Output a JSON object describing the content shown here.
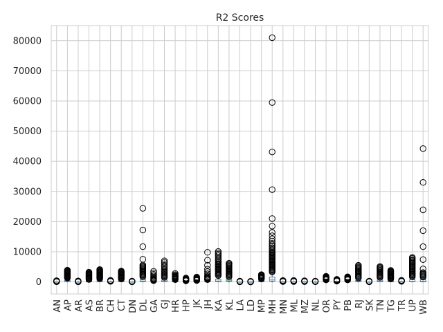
{
  "chart_data": {
    "type": "box",
    "title": "R2 Scores",
    "xlabel": "",
    "ylabel": "",
    "ylim": [
      -4000,
      85000
    ],
    "yticks": [
      0,
      10000,
      20000,
      30000,
      40000,
      50000,
      60000,
      70000,
      80000
    ],
    "grid": true,
    "colors": {
      "box": "#4c72b0",
      "median": "#55a868",
      "whisker": "#4c72b0",
      "flier": "#000000",
      "grid": "#cccccc",
      "axis": "#cccccc"
    },
    "boxes": [
      {
        "label": "AN",
        "q1": 0,
        "median": 0,
        "q3": 20,
        "whislo": 0,
        "whishi": 40,
        "fliers": [
          60,
          100,
          150,
          200,
          250,
          300,
          350,
          400
        ]
      },
      {
        "label": "AP",
        "q1": 30,
        "median": 150,
        "q3": 500,
        "whislo": 0,
        "whishi": 1200,
        "fliers": [
          1300,
          1500,
          1700,
          1900,
          2100,
          2300,
          2500,
          2700,
          2900,
          3100,
          3300,
          3500,
          3700,
          3900
        ]
      },
      {
        "label": "AR",
        "q1": 0,
        "median": 0,
        "q3": 10,
        "whislo": 0,
        "whishi": 25,
        "fliers": [
          30,
          50,
          80,
          110,
          150,
          200,
          260,
          320
        ]
      },
      {
        "label": "AS",
        "q1": 10,
        "median": 60,
        "q3": 300,
        "whislo": 0,
        "whishi": 700,
        "fliers": [
          800,
          1000,
          1200,
          1400,
          1600,
          1800,
          2000,
          2200,
          2400,
          2600,
          2800,
          3000,
          3200
        ]
      },
      {
        "label": "BR",
        "q1": 20,
        "median": 100,
        "q3": 400,
        "whislo": 0,
        "whishi": 1000,
        "fliers": [
          1100,
          1300,
          1500,
          1700,
          1900,
          2100,
          2300,
          2500,
          2700,
          2900,
          3100,
          3300,
          3500,
          3700,
          3900,
          4100
        ]
      },
      {
        "label": "CH",
        "q1": 0,
        "median": 20,
        "q3": 80,
        "whislo": 0,
        "whishi": 150,
        "fliers": [
          180,
          220,
          260,
          300,
          350,
          400,
          450,
          500
        ]
      },
      {
        "label": "CT",
        "q1": 20,
        "median": 100,
        "q3": 400,
        "whislo": 0,
        "whishi": 900,
        "fliers": [
          1000,
          1200,
          1400,
          1600,
          1800,
          2000,
          2200,
          2400,
          2600,
          2800,
          3000,
          3200,
          3400,
          3600
        ]
      },
      {
        "label": "DN",
        "q1": 0,
        "median": 0,
        "q3": 10,
        "whislo": 0,
        "whishi": 20,
        "fliers": [
          30,
          60,
          90,
          130,
          170,
          210,
          250
        ]
      },
      {
        "label": "DL",
        "q1": 50,
        "median": 300,
        "q3": 800,
        "whislo": 0,
        "whishi": 1500,
        "fliers": [
          1700,
          2000,
          2300,
          2600,
          2900,
          3200,
          3500,
          3800,
          4100,
          4400,
          4700,
          5000,
          5300,
          5600,
          7500,
          11700,
          17200,
          24400
        ]
      },
      {
        "label": "GA",
        "q1": 0,
        "median": 30,
        "q3": 150,
        "whislo": 0,
        "whishi": 300,
        "fliers": [
          400,
          600,
          800,
          1000,
          1300,
          1600,
          2000,
          2500,
          3000,
          3500
        ]
      },
      {
        "label": "GJ",
        "q1": 30,
        "median": 200,
        "q3": 600,
        "whislo": 0,
        "whishi": 1300,
        "fliers": [
          1500,
          1800,
          2100,
          2400,
          2700,
          3000,
          3300,
          3600,
          4000,
          4500,
          5000,
          5500,
          6000,
          6500,
          7000
        ]
      },
      {
        "label": "HR",
        "q1": 10,
        "median": 80,
        "q3": 300,
        "whislo": 0,
        "whishi": 650,
        "fliers": [
          750,
          900,
          1100,
          1300,
          1500,
          1700,
          1900,
          2100,
          2400,
          2800
        ]
      },
      {
        "label": "HP",
        "q1": 0,
        "median": 30,
        "q3": 150,
        "whislo": 0,
        "whishi": 300,
        "fliers": [
          350,
          450,
          550,
          650,
          750,
          850,
          950,
          1100,
          1300
        ]
      },
      {
        "label": "JK",
        "q1": 0,
        "median": 40,
        "q3": 180,
        "whislo": 0,
        "whishi": 380,
        "fliers": [
          450,
          550,
          650,
          750,
          850,
          950,
          1050,
          1200,
          1400,
          1600
        ]
      },
      {
        "label": "JH",
        "q1": 10,
        "median": 80,
        "q3": 300,
        "whislo": 0,
        "whishi": 650,
        "fliers": [
          750,
          900,
          1100,
          1300,
          1500,
          1800,
          2200,
          2700,
          3400,
          4200,
          5500,
          7200,
          9800
        ]
      },
      {
        "label": "KA",
        "q1": 60,
        "median": 300,
        "q3": 900,
        "whislo": 0,
        "whishi": 1900,
        "fliers": [
          2100,
          2400,
          2700,
          3000,
          3300,
          3600,
          3900,
          4200,
          4500,
          4800,
          5100,
          5400,
          5700,
          6000,
          6400,
          6800,
          7200,
          7700,
          8200,
          8700,
          9200,
          9600,
          10100
        ]
      },
      {
        "label": "KL",
        "q1": 200,
        "median": 400,
        "q3": 800,
        "whislo": 0,
        "whishi": 1500,
        "fliers": [
          1700,
          2000,
          2300,
          2600,
          2900,
          3200,
          3500,
          3800,
          4100,
          4400,
          4700,
          5000,
          5300,
          5600,
          5900,
          6200
        ]
      },
      {
        "label": "LA",
        "q1": 0,
        "median": 0,
        "q3": 10,
        "whislo": 0,
        "whishi": 20,
        "fliers": [
          30,
          60,
          100,
          150,
          200,
          260
        ]
      },
      {
        "label": "LD",
        "q1": 0,
        "median": 0,
        "q3": 0,
        "whislo": 0,
        "whishi": 0,
        "fliers": [
          5,
          15,
          30,
          60,
          100,
          150,
          200
        ]
      },
      {
        "label": "MP",
        "q1": 20,
        "median": 100,
        "q3": 400,
        "whislo": 0,
        "whishi": 900,
        "fliers": [
          1000,
          1200,
          1400,
          1600,
          1800,
          2000,
          2200,
          2400
        ]
      },
      {
        "label": "MH",
        "q1": 300,
        "median": 800,
        "q3": 1600,
        "whislo": 0,
        "whishi": 3000,
        "fliers": [
          3300,
          3600,
          3900,
          4200,
          4500,
          4800,
          5100,
          5400,
          5700,
          6000,
          6300,
          6600,
          6900,
          7200,
          7500,
          7800,
          8100,
          8400,
          8700,
          9000,
          9300,
          9600,
          9900,
          10300,
          10800,
          11300,
          11800,
          12300,
          12800,
          13500,
          14300,
          15300,
          16400,
          18500,
          21000,
          30600,
          43100,
          59500,
          81000
        ]
      },
      {
        "label": "MN",
        "q1": 0,
        "median": 10,
        "q3": 50,
        "whislo": 0,
        "whishi": 100,
        "fliers": [
          120,
          160,
          200,
          250,
          300,
          350,
          400,
          450
        ]
      },
      {
        "label": "ML",
        "q1": 0,
        "median": 10,
        "q3": 50,
        "whislo": 0,
        "whishi": 100,
        "fliers": [
          120,
          160,
          200,
          250,
          300,
          350,
          400,
          450
        ]
      },
      {
        "label": "MZ",
        "q1": 0,
        "median": 10,
        "q3": 40,
        "whislo": 0,
        "whishi": 80,
        "fliers": [
          100,
          140,
          180,
          220,
          260,
          300,
          340,
          380
        ]
      },
      {
        "label": "NL",
        "q1": 0,
        "median": 0,
        "q3": 20,
        "whislo": 0,
        "whishi": 40,
        "fliers": [
          60,
          100,
          140,
          180,
          220,
          260
        ]
      },
      {
        "label": "OR",
        "q1": 10,
        "median": 60,
        "q3": 250,
        "whislo": 0,
        "whishi": 550,
        "fliers": [
          650,
          800,
          950,
          1100,
          1250,
          1400,
          1550,
          1700,
          1850
        ]
      },
      {
        "label": "PY",
        "q1": 0,
        "median": 20,
        "q3": 100,
        "whislo": 0,
        "whishi": 200,
        "fliers": [
          250,
          350,
          450,
          550,
          650,
          750,
          850
        ]
      },
      {
        "label": "PB",
        "q1": 10,
        "median": 60,
        "q3": 250,
        "whislo": 0,
        "whishi": 550,
        "fliers": [
          650,
          800,
          950,
          1100,
          1250,
          1400,
          1550,
          1700
        ]
      },
      {
        "label": "RJ",
        "q1": 30,
        "median": 150,
        "q3": 500,
        "whislo": 0,
        "whishi": 1100,
        "fliers": [
          1300,
          1600,
          1900,
          2200,
          2500,
          2800,
          3100,
          3400,
          3700,
          4000,
          4300,
          4600,
          4900,
          5200,
          5500
        ]
      },
      {
        "label": "SK",
        "q1": 0,
        "median": 0,
        "q3": 10,
        "whislo": 0,
        "whishi": 25,
        "fliers": [
          40,
          70,
          100,
          140,
          180,
          220,
          260
        ]
      },
      {
        "label": "TN",
        "q1": 30,
        "median": 200,
        "q3": 600,
        "whislo": 0,
        "whishi": 1300,
        "fliers": [
          1500,
          1800,
          2100,
          2400,
          2700,
          3000,
          3300,
          3600,
          3900,
          4200,
          4500,
          4800,
          5100
        ]
      },
      {
        "label": "TG",
        "q1": 20,
        "median": 100,
        "q3": 400,
        "whislo": 0,
        "whishi": 900,
        "fliers": [
          1000,
          1200,
          1400,
          1600,
          1800,
          2000,
          2200,
          2400,
          2600,
          2800,
          3000,
          3200,
          3400,
          3600,
          3800
        ]
      },
      {
        "label": "TR",
        "q1": 0,
        "median": 20,
        "q3": 80,
        "whislo": 0,
        "whishi": 150,
        "fliers": [
          180,
          220,
          260,
          300,
          350,
          400,
          450,
          500
        ]
      },
      {
        "label": "UP",
        "q1": 40,
        "median": 200,
        "q3": 700,
        "whislo": 0,
        "whishi": 1500,
        "fliers": [
          1700,
          2000,
          2300,
          2600,
          2900,
          3200,
          3500,
          3800,
          4100,
          4400,
          4700,
          5000,
          5300,
          5600,
          5900,
          6200,
          6500,
          6800,
          7100,
          7400,
          7800,
          8100
        ]
      },
      {
        "label": "WB",
        "q1": 50,
        "median": 250,
        "q3": 700,
        "whislo": 0,
        "whishi": 1400,
        "fliers": [
          1600,
          1900,
          2200,
          2500,
          2800,
          3100,
          4300,
          7400,
          11700,
          17000,
          23900,
          33000,
          44200
        ]
      }
    ]
  }
}
